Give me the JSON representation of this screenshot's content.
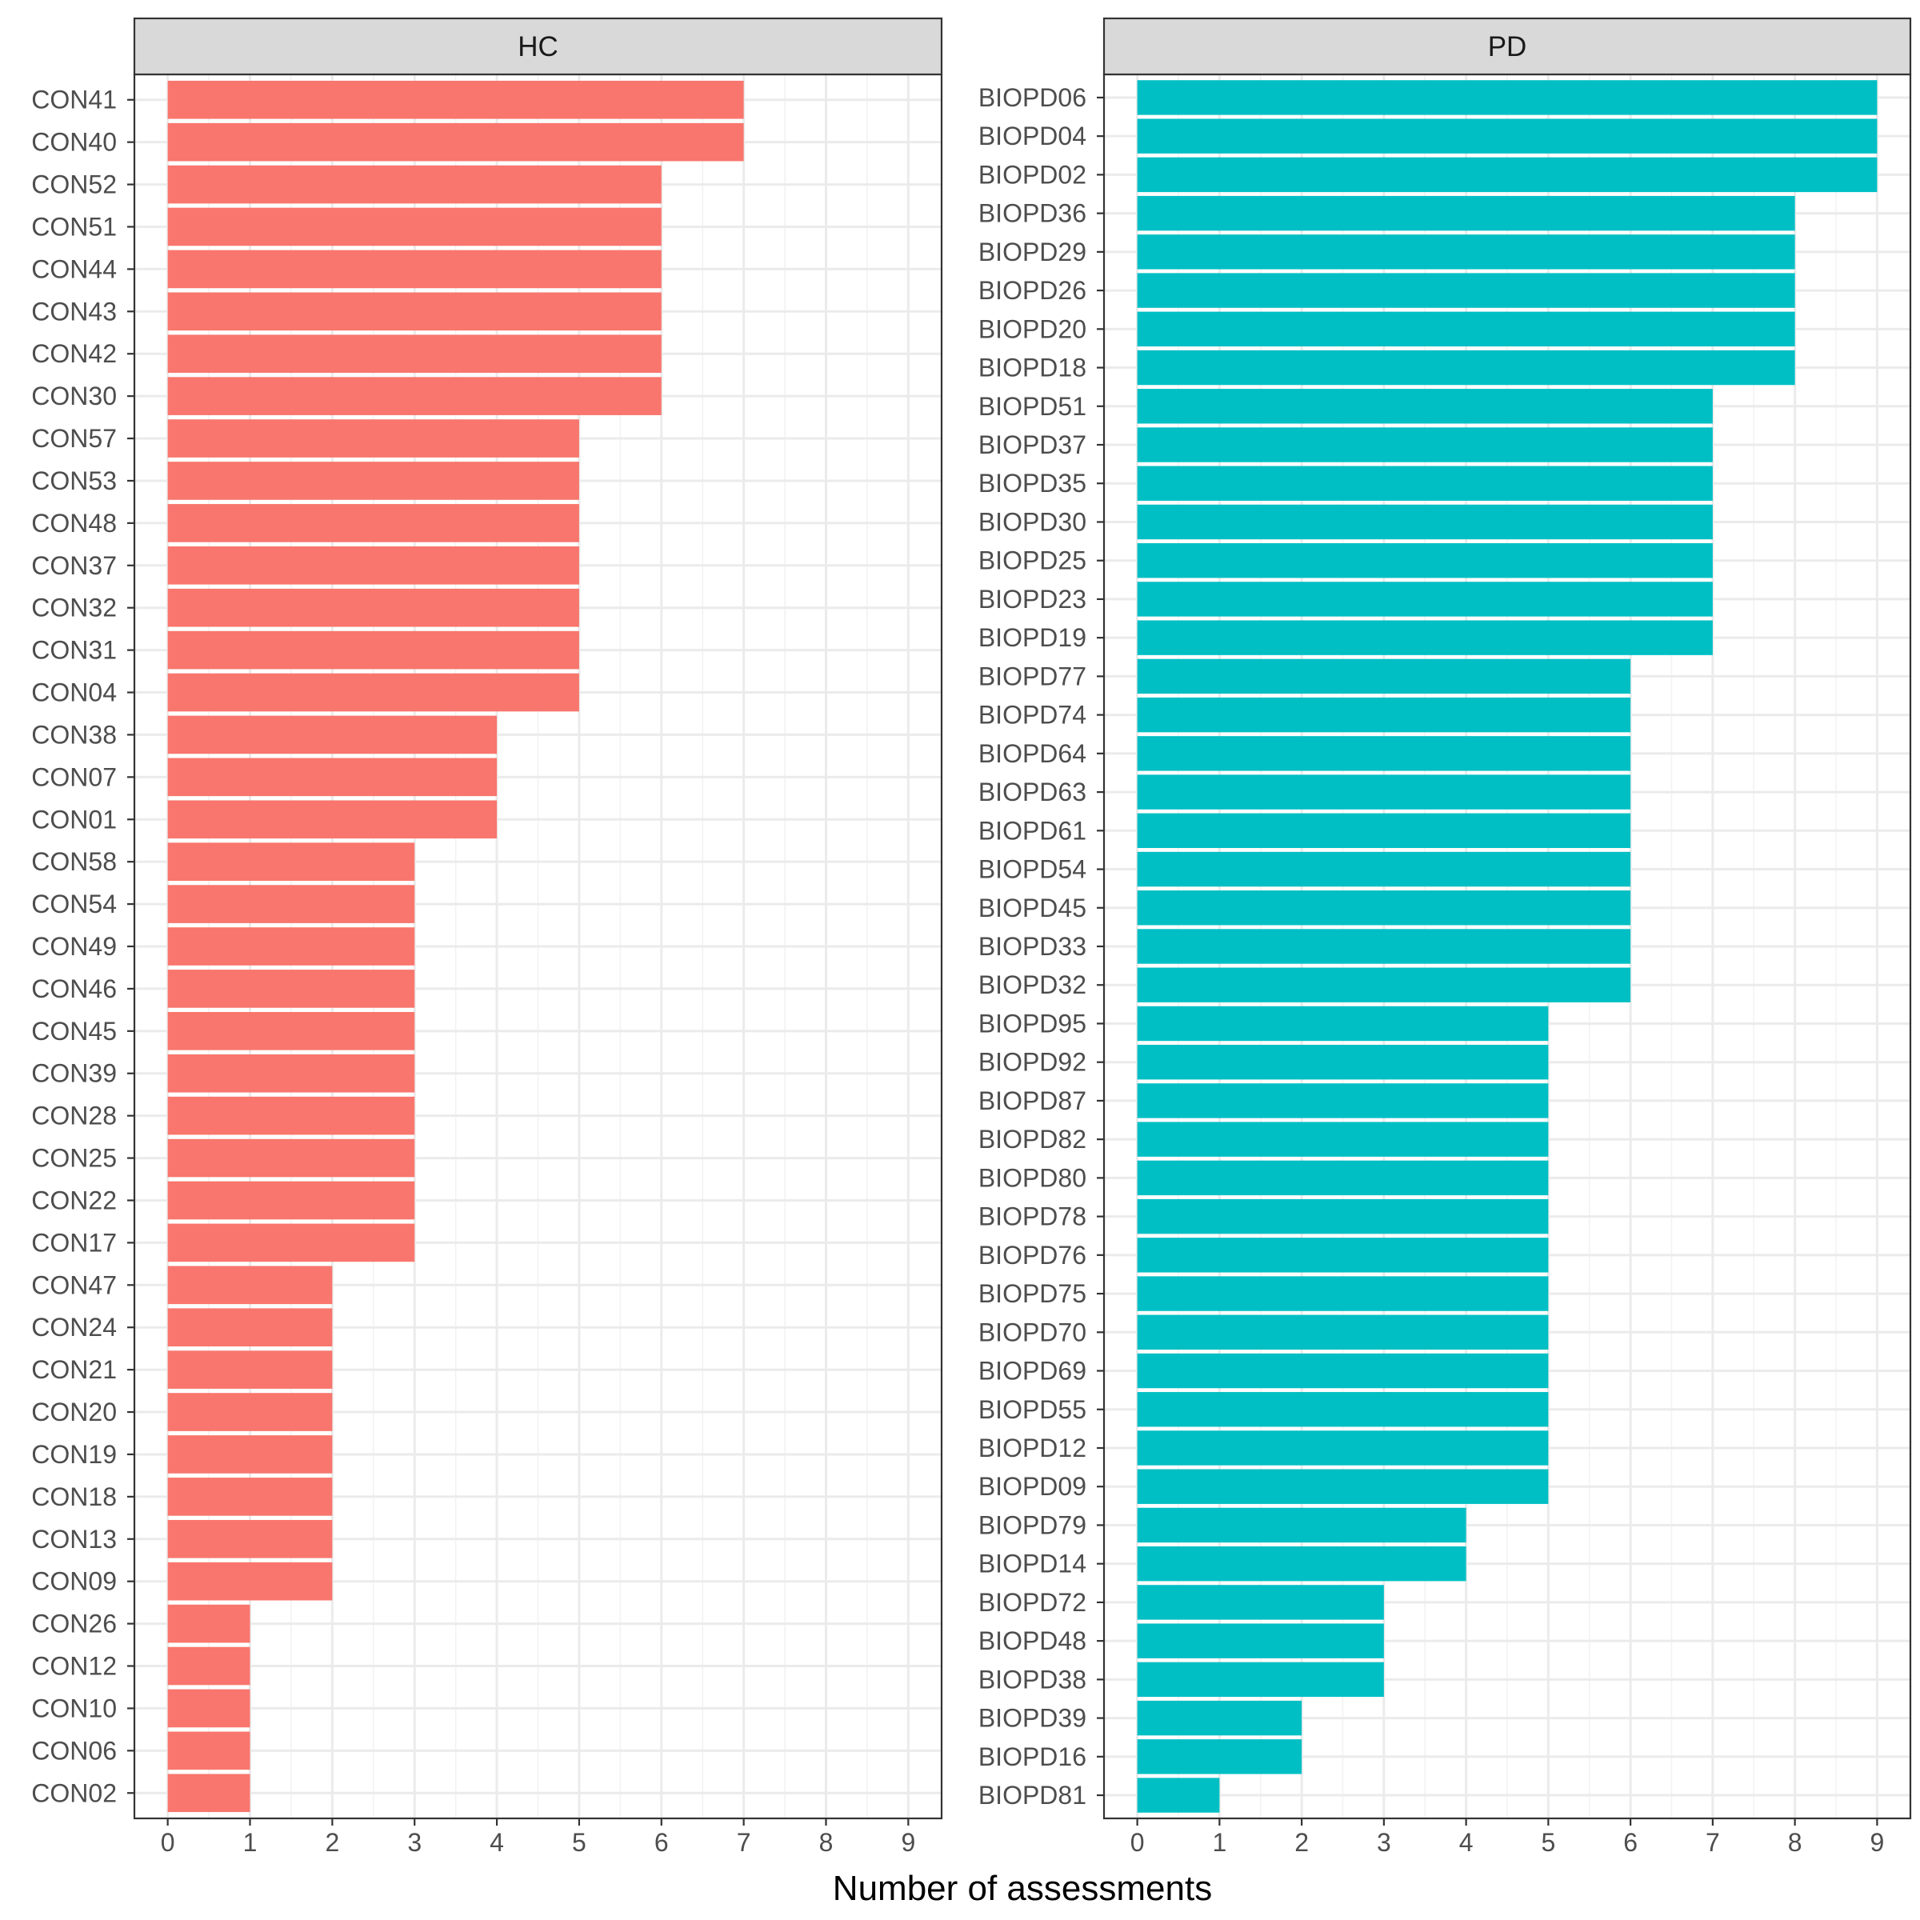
{
  "chart_data": {
    "type": "bar",
    "orientation": "horizontal",
    "xlabel": "Number of assessments",
    "ylabel": "",
    "xlim": [
      0,
      9
    ],
    "x_ticks": [
      "0",
      "1",
      "2",
      "3",
      "4",
      "5",
      "6",
      "7",
      "8",
      "9"
    ],
    "grid": true,
    "legend": "none",
    "panels": [
      {
        "name": "HC",
        "color": "#F8766D",
        "categories": [
          "CON41",
          "CON40",
          "CON52",
          "CON51",
          "CON44",
          "CON43",
          "CON42",
          "CON30",
          "CON57",
          "CON53",
          "CON48",
          "CON37",
          "CON32",
          "CON31",
          "CON04",
          "CON38",
          "CON07",
          "CON01",
          "CON58",
          "CON54",
          "CON49",
          "CON46",
          "CON45",
          "CON39",
          "CON28",
          "CON25",
          "CON22",
          "CON17",
          "CON47",
          "CON24",
          "CON21",
          "CON20",
          "CON19",
          "CON18",
          "CON13",
          "CON09",
          "CON26",
          "CON12",
          "CON10",
          "CON06",
          "CON02"
        ],
        "values": [
          7,
          7,
          6,
          6,
          6,
          6,
          6,
          6,
          5,
          5,
          5,
          5,
          5,
          5,
          5,
          4,
          4,
          4,
          3,
          3,
          3,
          3,
          3,
          3,
          3,
          3,
          3,
          3,
          2,
          2,
          2,
          2,
          2,
          2,
          2,
          2,
          1,
          1,
          1,
          1,
          1
        ]
      },
      {
        "name": "PD",
        "color": "#00BFC4",
        "categories": [
          "BIOPD06",
          "BIOPD04",
          "BIOPD02",
          "BIOPD36",
          "BIOPD29",
          "BIOPD26",
          "BIOPD20",
          "BIOPD18",
          "BIOPD51",
          "BIOPD37",
          "BIOPD35",
          "BIOPD30",
          "BIOPD25",
          "BIOPD23",
          "BIOPD19",
          "BIOPD77",
          "BIOPD74",
          "BIOPD64",
          "BIOPD63",
          "BIOPD61",
          "BIOPD54",
          "BIOPD45",
          "BIOPD33",
          "BIOPD32",
          "BIOPD95",
          "BIOPD92",
          "BIOPD87",
          "BIOPD82",
          "BIOPD80",
          "BIOPD78",
          "BIOPD76",
          "BIOPD75",
          "BIOPD70",
          "BIOPD69",
          "BIOPD55",
          "BIOPD12",
          "BIOPD09",
          "BIOPD79",
          "BIOPD14",
          "BIOPD72",
          "BIOPD48",
          "BIOPD38",
          "BIOPD39",
          "BIOPD16",
          "BIOPD81"
        ],
        "values": [
          9,
          9,
          9,
          8,
          8,
          8,
          8,
          8,
          7,
          7,
          7,
          7,
          7,
          7,
          7,
          6,
          6,
          6,
          6,
          6,
          6,
          6,
          6,
          6,
          5,
          5,
          5,
          5,
          5,
          5,
          5,
          5,
          5,
          5,
          5,
          5,
          5,
          4,
          4,
          3,
          3,
          3,
          2,
          2,
          1
        ]
      }
    ]
  }
}
